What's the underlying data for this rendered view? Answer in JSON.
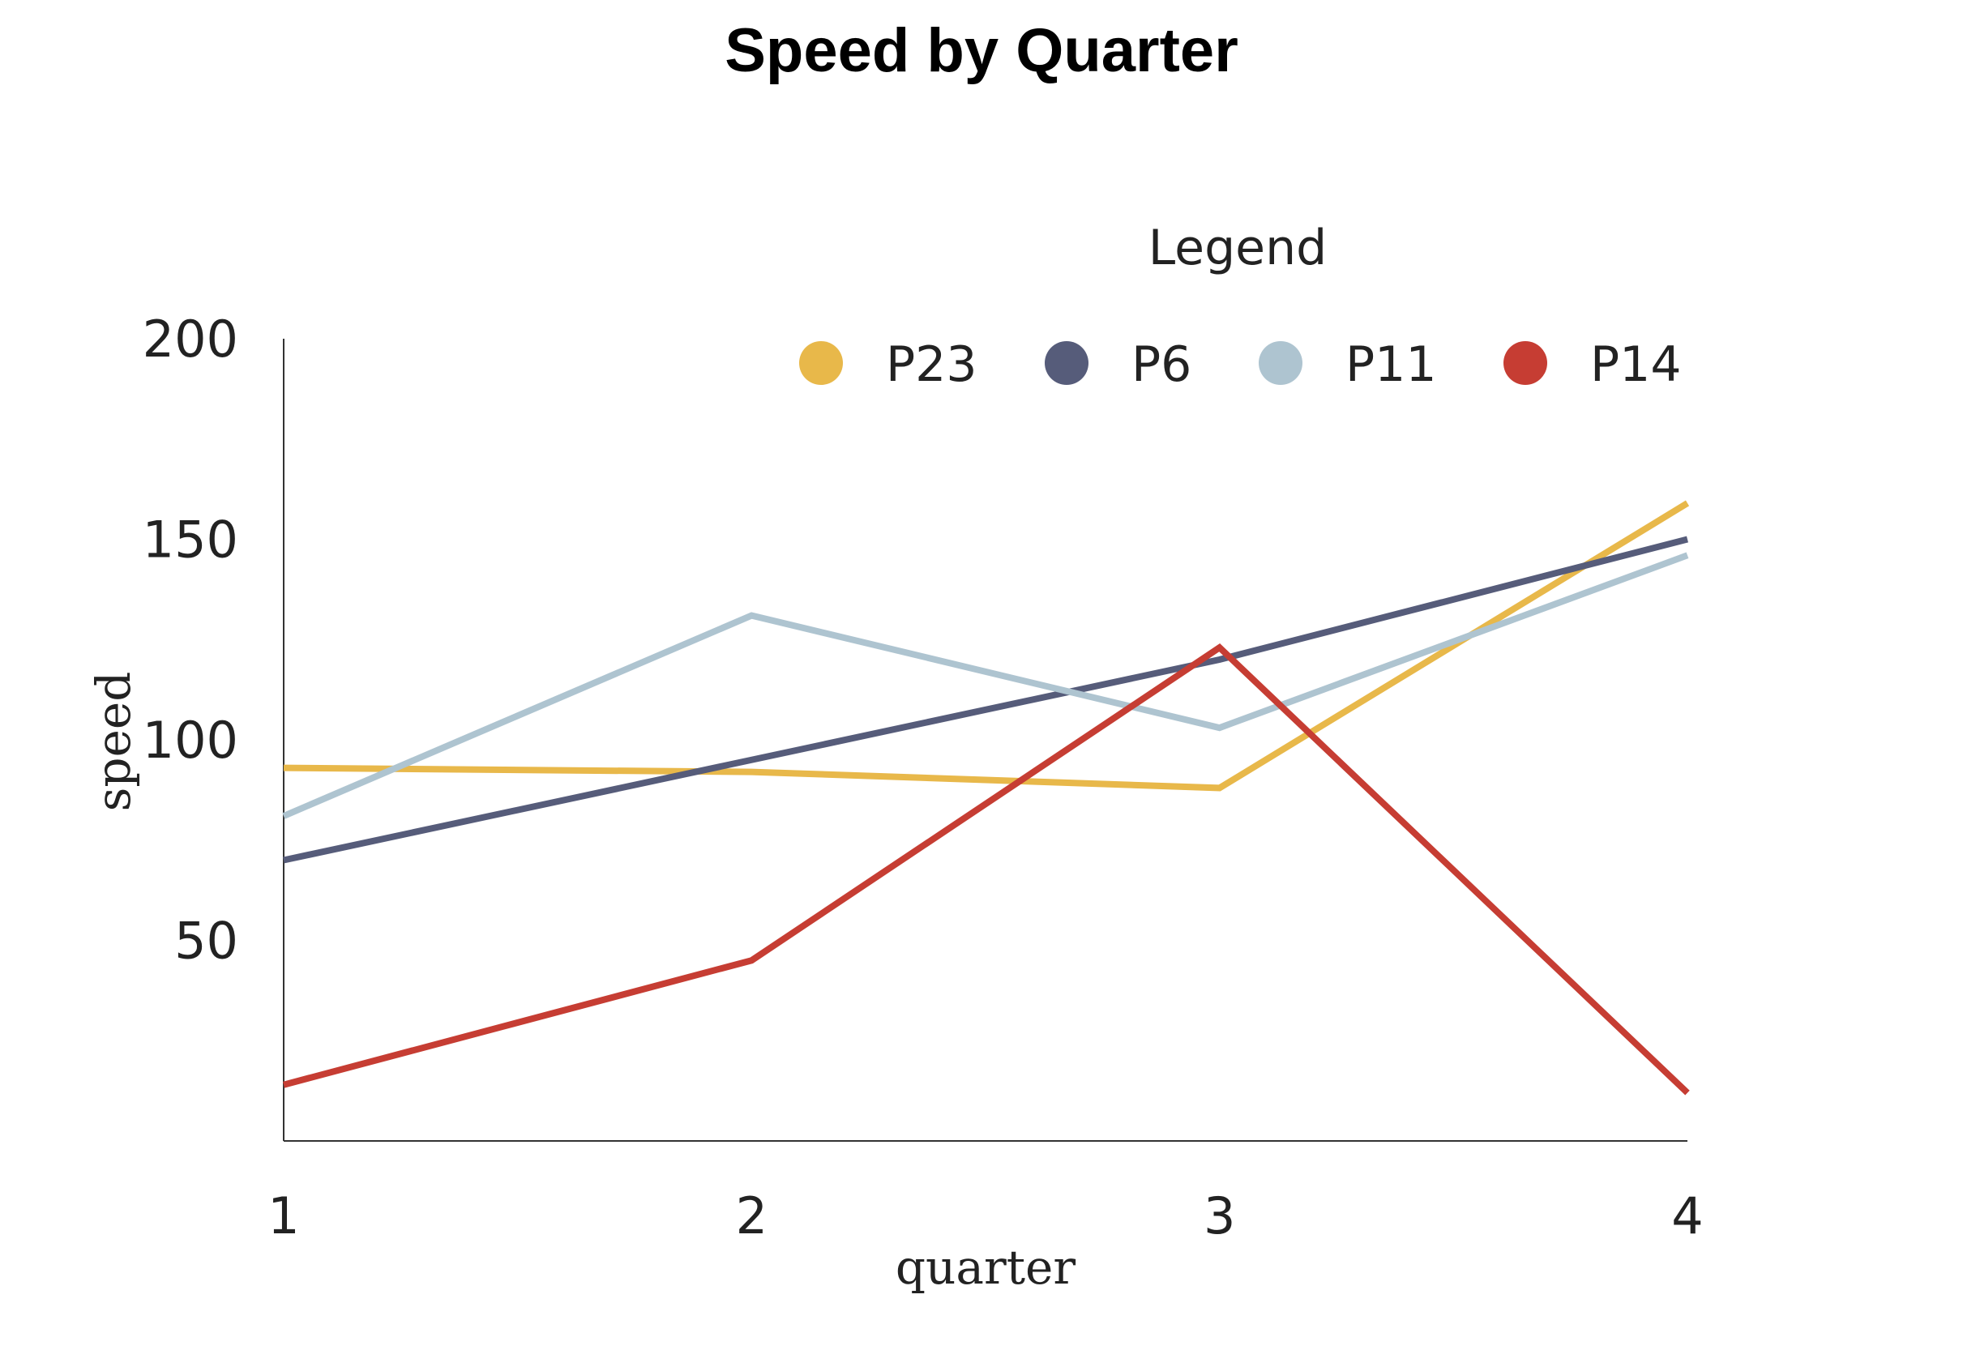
{
  "colors": {
    "background": "#ffffff",
    "axis": "#333333",
    "text": "#222222"
  },
  "chart_data": {
    "type": "line",
    "title": "Speed by Quarter",
    "xlabel": "quarter",
    "ylabel": "speed",
    "x": [
      1,
      2,
      3,
      4
    ],
    "x_tick_labels": [
      "1",
      "2",
      "3",
      "4"
    ],
    "y_tick_labels": [
      "50",
      "100",
      "150",
      "200"
    ],
    "yticks": [
      50,
      100,
      150,
      200
    ],
    "xlim": [
      1,
      4
    ],
    "ylim": [
      0,
      200
    ],
    "grid": false,
    "legend": {
      "title": "Legend",
      "placement": "top-right"
    },
    "series": [
      {
        "name": "P23",
        "color": "#E8B84A",
        "values": [
          93,
          92,
          88,
          159
        ]
      },
      {
        "name": "P6",
        "color": "#565C7A",
        "values": [
          70,
          95,
          120,
          150
        ]
      },
      {
        "name": "P11",
        "color": "#AEC4D0",
        "values": [
          81,
          131,
          103,
          146
        ]
      },
      {
        "name": "P14",
        "color": "#C63D33",
        "values": [
          14,
          45,
          123,
          12
        ]
      }
    ]
  }
}
